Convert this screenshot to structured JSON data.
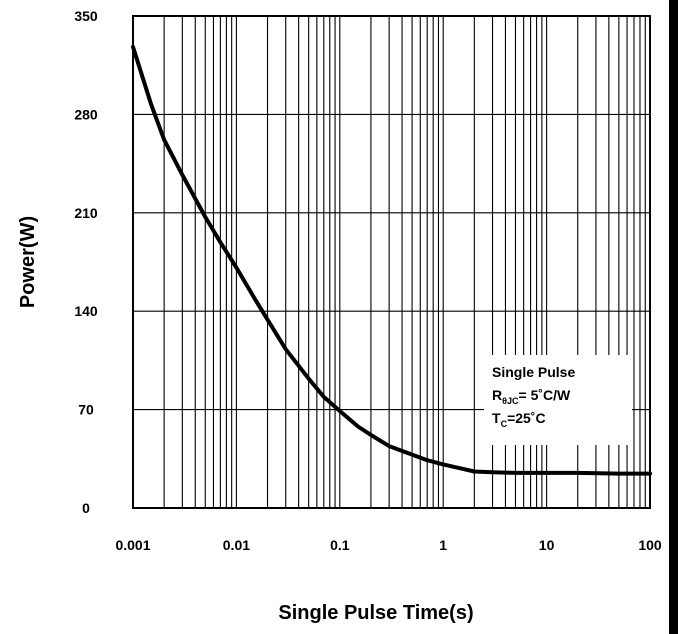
{
  "chart_data": {
    "type": "line",
    "title": "",
    "xlabel": "Single Pulse Time(s)",
    "ylabel": "Power(W)",
    "x_scale": "log",
    "xlim": [
      0.001,
      100
    ],
    "ylim": [
      0,
      350
    ],
    "x_ticks": [
      "0.001",
      "0.01",
      "0.1",
      "1",
      "10",
      "100"
    ],
    "y_ticks": [
      "0",
      "70",
      "140",
      "210",
      "280",
      "350"
    ],
    "grid": true,
    "series": [
      {
        "x": [
          0.001,
          0.0015,
          0.002,
          0.003,
          0.005,
          0.007,
          0.01,
          0.015,
          0.02,
          0.03,
          0.05,
          0.07,
          0.1,
          0.15,
          0.2,
          0.3,
          0.5,
          0.7,
          1,
          1.5,
          2,
          3,
          5,
          10,
          20,
          50,
          100
        ],
        "y": [
          328,
          287,
          262,
          237,
          207,
          189,
          171,
          149,
          134,
          113,
          92,
          79,
          69,
          58,
          52,
          44,
          38,
          34,
          31,
          28,
          26,
          25.5,
          25,
          25,
          25,
          24.5,
          24.5
        ]
      }
    ],
    "annotations": [
      {
        "lines": [
          {
            "text": "Single  Pulse"
          },
          {
            "text": "R",
            "sub": "θJC",
            "rest": "= 5˚C/W"
          },
          {
            "text": "T",
            "sub": "C",
            "rest": "=25˚C"
          }
        ]
      }
    ]
  }
}
